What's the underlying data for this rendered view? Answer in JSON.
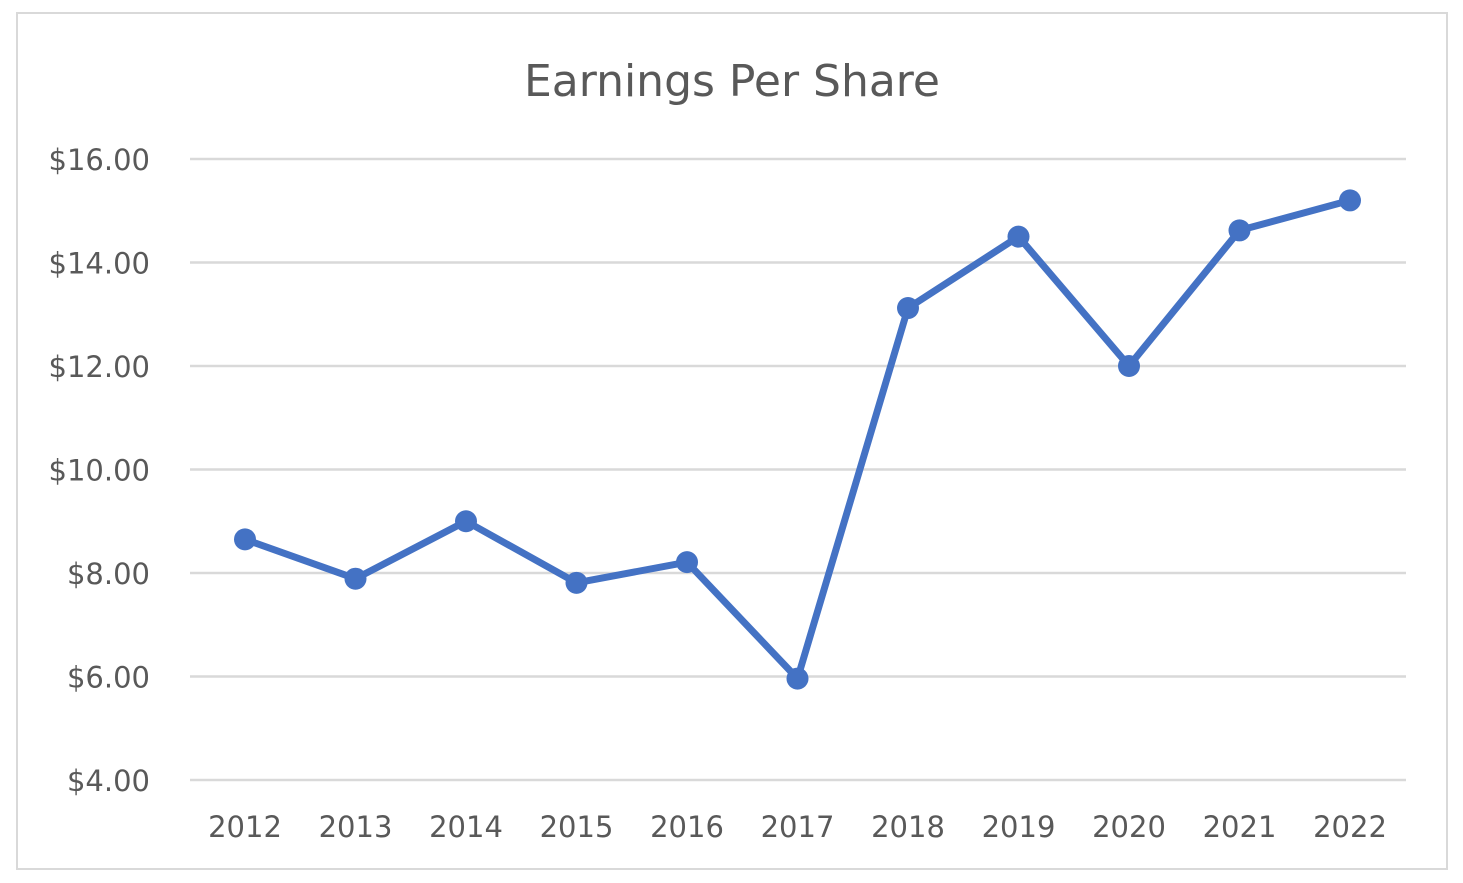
{
  "chart_data": {
    "type": "line",
    "title": "Earnings Per Share",
    "xlabel": "",
    "ylabel": "",
    "categories": [
      "2012",
      "2013",
      "2014",
      "2015",
      "2016",
      "2017",
      "2018",
      "2019",
      "2020",
      "2021",
      "2022"
    ],
    "series": [
      {
        "values": [
          8.65,
          7.89,
          9.0,
          7.81,
          8.21,
          5.96,
          13.12,
          14.5,
          12.0,
          14.62,
          15.2
        ]
      }
    ],
    "ylim": [
      4,
      16
    ],
    "yticks": [
      4,
      6,
      8,
      10,
      12,
      14,
      16
    ],
    "ytick_labels": [
      "$4.00",
      "$6.00",
      "$8.00",
      "$10.00",
      "$12.00",
      "$14.00",
      "$16.00"
    ],
    "grid": true,
    "legend": "none",
    "colors": {
      "line": "#4472c4",
      "grid": "#d9d9d9",
      "text": "#595959",
      "border": "#d9d9d9"
    }
  }
}
